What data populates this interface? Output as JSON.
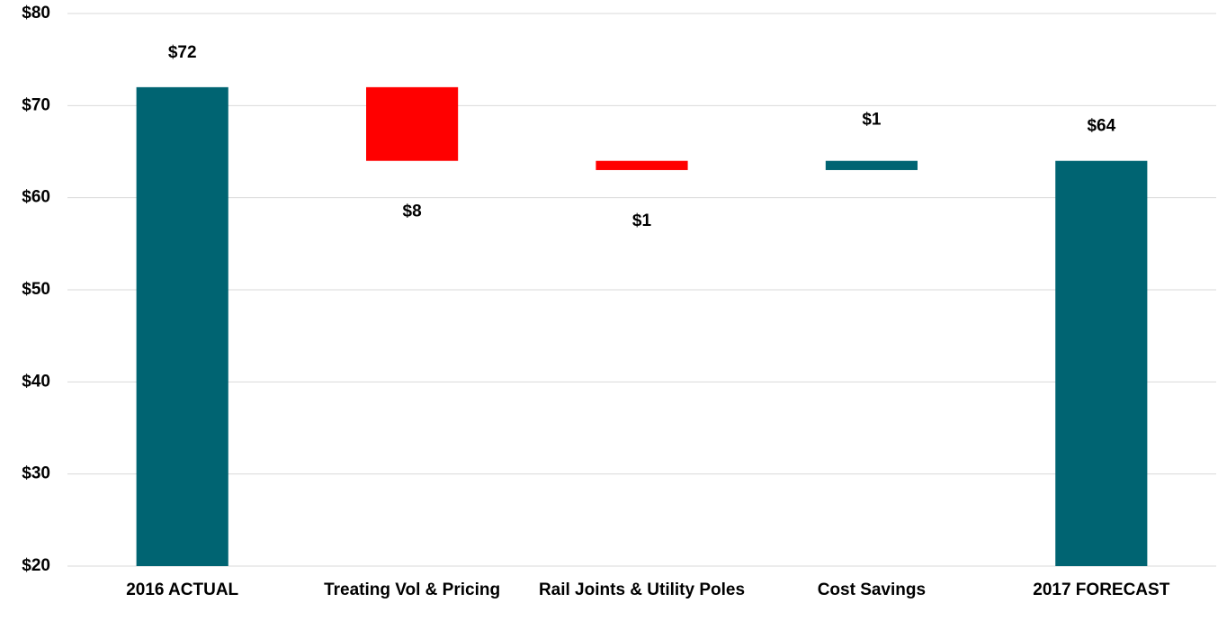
{
  "chart_data": {
    "type": "waterfall",
    "categories": [
      "2016 ACTUAL",
      "Treating Vol & Pricing",
      "Rail Joints & Utility Poles",
      "Cost Savings",
      "2017 FORECAST"
    ],
    "measures": [
      "total",
      "relative",
      "relative",
      "relative",
      "total"
    ],
    "values": [
      72,
      -8,
      -1,
      1,
      64
    ],
    "value_labels": [
      "$72",
      "$8",
      "$1",
      "$1",
      "$64"
    ],
    "colors": [
      "#006472",
      "#ff0000",
      "#ff0000",
      "#006472",
      "#006472"
    ],
    "ylim": [
      20,
      80
    ],
    "yticks": [
      {
        "value": 20,
        "label": "$20"
      },
      {
        "value": 30,
        "label": "$30"
      },
      {
        "value": 40,
        "label": "$40"
      },
      {
        "value": 50,
        "label": "$50"
      },
      {
        "value": 60,
        "label": "$60"
      },
      {
        "value": 70,
        "label": "$70"
      },
      {
        "value": 80,
        "label": "$80"
      }
    ],
    "grid": true
  }
}
